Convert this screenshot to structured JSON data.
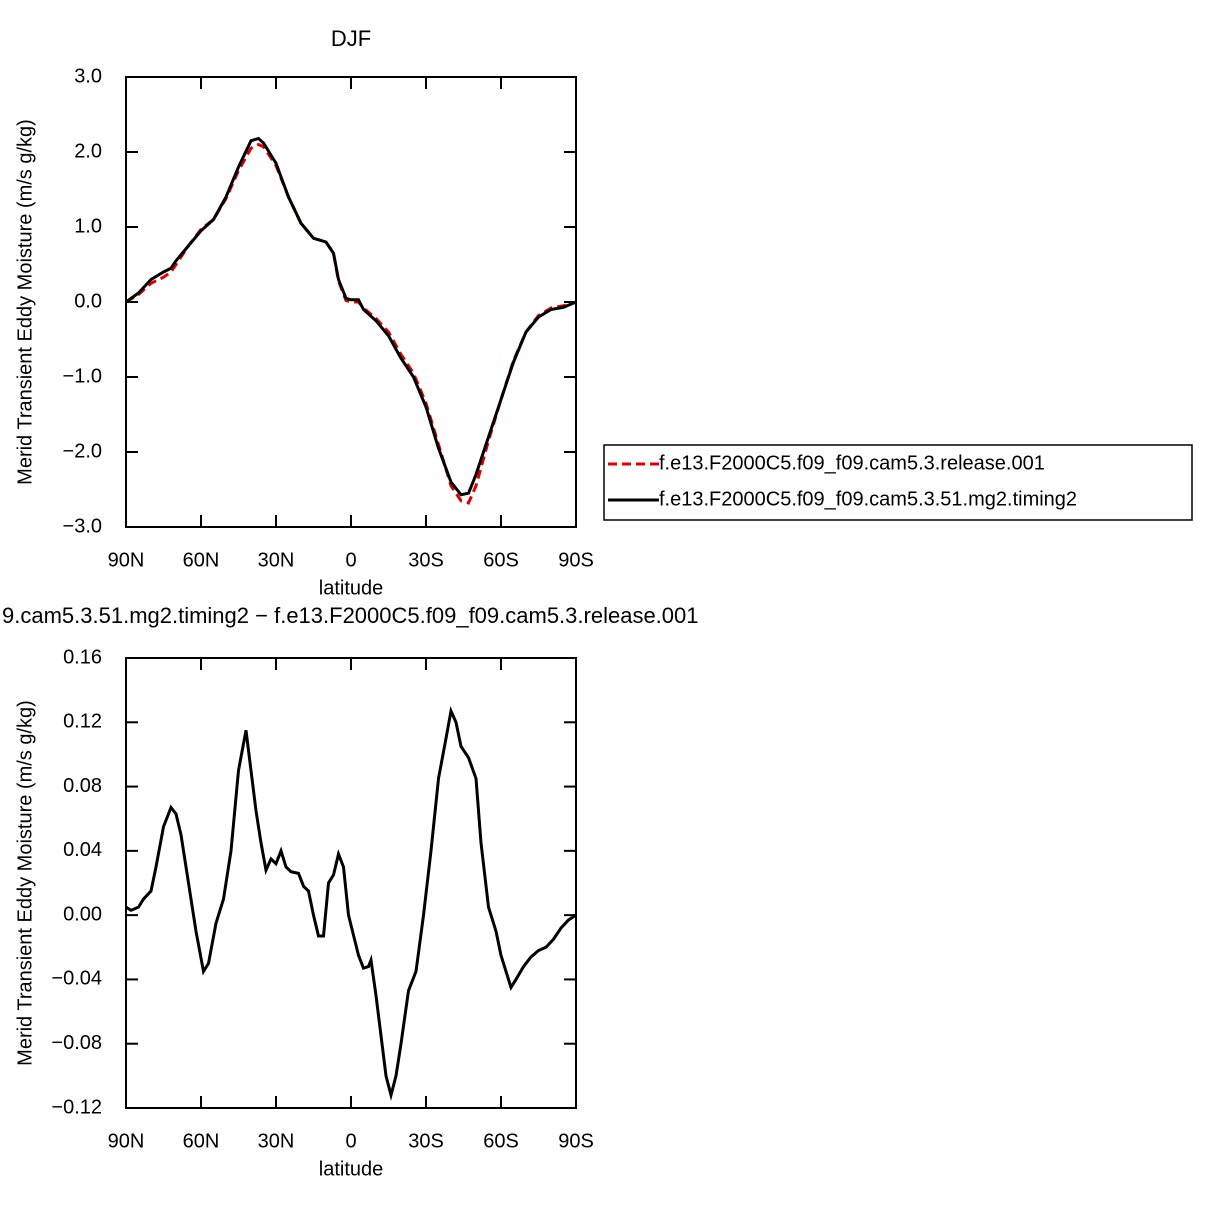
{
  "chart_data": [
    {
      "type": "line",
      "title": "DJF",
      "xlabel": "latitude",
      "ylabel": "Merid Transient Eddy Moisture (m/s g/kg)",
      "x": [
        90,
        85,
        80,
        75,
        72,
        70,
        65,
        60,
        55,
        50,
        45,
        40,
        37,
        35,
        30,
        25,
        20,
        15,
        10,
        7,
        5,
        2,
        0,
        -3,
        -5,
        -10,
        -15,
        -20,
        -25,
        -30,
        -35,
        -40,
        -44,
        -47,
        -50,
        -55,
        -60,
        -65,
        -70,
        -75,
        -80,
        -85,
        -90
      ],
      "series": [
        {
          "name": "f.e13.F2000C5.f09_f09.cam5.3.release.001",
          "color": "#e00000",
          "linestyle": "dashed",
          "values": [
            0.0,
            0.1,
            0.25,
            0.33,
            0.4,
            0.5,
            0.75,
            0.97,
            1.1,
            1.38,
            1.75,
            2.05,
            2.1,
            2.07,
            1.82,
            1.4,
            1.05,
            0.85,
            0.8,
            0.65,
            0.28,
            0.02,
            0.0,
            0.0,
            -0.08,
            -0.22,
            -0.4,
            -0.7,
            -0.95,
            -1.35,
            -1.9,
            -2.45,
            -2.65,
            -2.68,
            -2.45,
            -1.85,
            -1.3,
            -0.78,
            -0.4,
            -0.18,
            -0.08,
            -0.05,
            0.0
          ]
        },
        {
          "name": "f.e13.F2000C5.f09_f09.cam5.3.51.mg2.timing2",
          "color": "#000000",
          "linestyle": "solid",
          "values": [
            0.0,
            0.12,
            0.3,
            0.4,
            0.45,
            0.55,
            0.75,
            0.95,
            1.1,
            1.4,
            1.8,
            2.15,
            2.18,
            2.12,
            1.85,
            1.4,
            1.05,
            0.85,
            0.8,
            0.65,
            0.3,
            0.05,
            0.03,
            0.03,
            -0.1,
            -0.25,
            -0.45,
            -0.75,
            -1.0,
            -1.4,
            -1.95,
            -2.4,
            -2.57,
            -2.55,
            -2.3,
            -1.8,
            -1.3,
            -0.8,
            -0.4,
            -0.2,
            -0.1,
            -0.07,
            0.0
          ]
        }
      ],
      "xlim": [
        90,
        -90
      ],
      "xticks": [
        {
          "value": 90,
          "label": "90N"
        },
        {
          "value": 60,
          "label": "60N"
        },
        {
          "value": 30,
          "label": "30N"
        },
        0,
        {
          "value": -30,
          "label": "30S"
        },
        {
          "value": -60,
          "label": "60S"
        },
        {
          "value": -90,
          "label": "90S"
        }
      ],
      "ylim": [
        -3,
        3
      ],
      "yticks": [
        {
          "value": 3,
          "label": "3.0"
        },
        {
          "value": 2,
          "label": "2.0"
        },
        {
          "value": 1,
          "label": "1.0"
        },
        {
          "value": 0,
          "label": "0.0"
        },
        {
          "value": -1,
          "label": "−1.0"
        },
        {
          "value": -2,
          "label": "−2.0"
        },
        {
          "value": -3,
          "label": "−3.0"
        }
      ],
      "legend": "outside right"
    },
    {
      "type": "line",
      "title": "9.cam5.3.51.mg2.timing2 − f.e13.F2000C5.f09_f09.cam5.3.release.001",
      "xlabel": "latitude",
      "ylabel": "Merid Transient Eddy Moisture (m/s g/kg)",
      "x": [
        90,
        88,
        85,
        83,
        80,
        78,
        75,
        72,
        70,
        68,
        65,
        62,
        59,
        57,
        54,
        51,
        48,
        45,
        42,
        40,
        38,
        36,
        34,
        32,
        30,
        28,
        26,
        24,
        21,
        19,
        17,
        15,
        13,
        11,
        9,
        7,
        5,
        3,
        1,
        -3,
        -5,
        -7,
        -8,
        -10,
        -12,
        -14,
        -16,
        -18,
        -20,
        -23,
        -26,
        -29,
        -32,
        -35,
        -38,
        -40,
        -42,
        -44,
        -47,
        -50,
        -52,
        -55,
        -58,
        -60,
        -63,
        -64,
        -66,
        -69,
        -72,
        -75,
        -78,
        -81,
        -84,
        -87,
        -90
      ],
      "series": [
        {
          "color": "#000000",
          "linestyle": "solid",
          "values": [
            0.005,
            0.003,
            0.005,
            0.01,
            0.015,
            0.03,
            0.055,
            0.067,
            0.063,
            0.05,
            0.02,
            -0.01,
            -0.035,
            -0.03,
            -0.005,
            0.01,
            0.04,
            0.09,
            0.115,
            0.09,
            0.065,
            0.045,
            0.028,
            0.035,
            0.032,
            0.04,
            0.03,
            0.027,
            0.026,
            0.018,
            0.015,
            0.0,
            -0.013,
            -0.013,
            0.02,
            0.025,
            0.038,
            0.03,
            0.0,
            -0.025,
            -0.033,
            -0.032,
            -0.028,
            -0.05,
            -0.075,
            -0.1,
            -0.112,
            -0.1,
            -0.08,
            -0.047,
            -0.035,
            0.0,
            0.04,
            0.085,
            0.11,
            0.127,
            0.12,
            0.105,
            0.098,
            0.085,
            0.045,
            0.005,
            -0.01,
            -0.025,
            -0.04,
            -0.045,
            -0.04,
            -0.032,
            -0.026,
            -0.022,
            -0.02,
            -0.015,
            -0.008,
            -0.003,
            0.0
          ]
        }
      ],
      "xlim": [
        90,
        -90
      ],
      "xticks": [
        {
          "value": 90,
          "label": "90N"
        },
        {
          "value": 60,
          "label": "60N"
        },
        {
          "value": 30,
          "label": "30N"
        },
        0,
        {
          "value": -30,
          "label": "30S"
        },
        {
          "value": -60,
          "label": "60S"
        },
        {
          "value": -90,
          "label": "90S"
        }
      ],
      "ylim": [
        -0.12,
        0.16
      ],
      "yticks": [
        0.16,
        0.12,
        0.08,
        0.04,
        {
          "value": 0,
          "label": "0.00"
        },
        {
          "value": -0.04,
          "label": "−0.04"
        },
        {
          "value": -0.08,
          "label": "−0.08"
        },
        {
          "value": -0.12,
          "label": "−0.12"
        }
      ]
    }
  ]
}
